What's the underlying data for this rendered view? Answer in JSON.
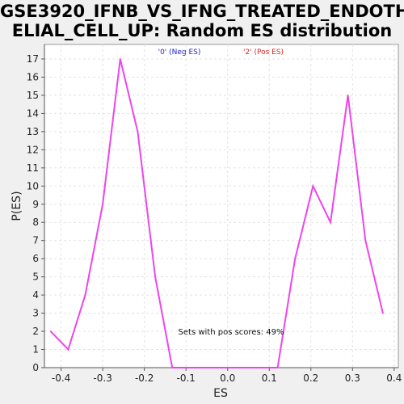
{
  "chart_data": {
    "type": "line",
    "title_line1": "GSE3920_IFNB_VS_IFNG_TREATED_ENDOTH",
    "title_line2": "ELIAL_CELL_UP: Random ES distribution",
    "xlabel": "ES",
    "ylabel": "P(ES)",
    "xlim": [
      -0.44,
      0.41
    ],
    "ylim": [
      0,
      17.8
    ],
    "x_ticks": [
      -0.4,
      -0.3,
      -0.2,
      -0.1,
      0.0,
      0.1,
      0.2,
      0.3,
      0.4
    ],
    "x_tick_labels": [
      "-0.4",
      "-0.3",
      "-0.2",
      "-0.1",
      "0.0",
      "0.1",
      "0.2",
      "0.3",
      "0.4"
    ],
    "y_ticks": [
      0,
      1,
      2,
      3,
      4,
      5,
      6,
      7,
      8,
      9,
      10,
      11,
      12,
      13,
      14,
      15,
      16,
      17
    ],
    "y_tick_labels": [
      "0",
      "1",
      "2",
      "3",
      "4",
      "5",
      "6",
      "7",
      "8",
      "9",
      "10",
      "11",
      "12",
      "13",
      "14",
      "15",
      "16",
      "17"
    ],
    "grid": true,
    "legend": [
      {
        "label": "'0' (Neg ES)",
        "color": "#2222cc"
      },
      {
        "label": "'2' (Pos ES)",
        "color": "#dd2222"
      }
    ],
    "annotation": "Sets with pos scores: 49%",
    "series": [
      {
        "color": "#ee44ee",
        "x": [
          -0.425,
          -0.383,
          -0.342,
          -0.3,
          -0.258,
          -0.216,
          -0.174,
          -0.133,
          -0.091,
          -0.049,
          -0.007,
          0.035,
          0.077,
          0.12,
          0.162,
          0.205,
          0.247,
          0.289,
          0.331,
          0.373
        ],
        "y": [
          2,
          1,
          4,
          9,
          17,
          13,
          5,
          0,
          0,
          0,
          0,
          0,
          0,
          0,
          6,
          10,
          8,
          15,
          7,
          3
        ]
      }
    ]
  }
}
